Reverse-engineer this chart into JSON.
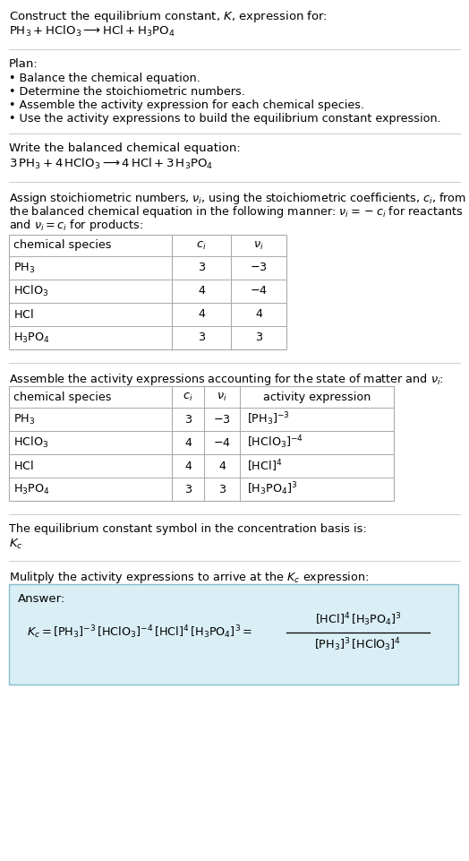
{
  "title_line1": "Construct the equilibrium constant, $K$, expression for:",
  "title_line2": "$\\mathrm{PH_3 + HClO_3 \\longrightarrow HCl + H_3PO_4}$",
  "plan_header": "Plan:",
  "plan_items": [
    "• Balance the chemical equation.",
    "• Determine the stoichiometric numbers.",
    "• Assemble the activity expression for each chemical species.",
    "• Use the activity expressions to build the equilibrium constant expression."
  ],
  "balanced_header": "Write the balanced chemical equation:",
  "balanced_eq": "$\\mathrm{3\\,PH_3 + 4\\,HClO_3 \\longrightarrow 4\\,HCl + 3\\,H_3PO_4}$",
  "stoich_intro_lines": [
    "Assign stoichiometric numbers, $\\nu_i$, using the stoichiometric coefficients, $c_i$, from",
    "the balanced chemical equation in the following manner: $\\nu_i = -c_i$ for reactants",
    "and $\\nu_i = c_i$ for products:"
  ],
  "table1_headers": [
    "chemical species",
    "$c_i$",
    "$\\nu_i$"
  ],
  "table1_rows": [
    [
      "$\\mathrm{PH_3}$",
      "3",
      "$-3$"
    ],
    [
      "$\\mathrm{HClO_3}$",
      "4",
      "$-4$"
    ],
    [
      "$\\mathrm{HCl}$",
      "4",
      "4"
    ],
    [
      "$\\mathrm{H_3PO_4}$",
      "3",
      "3"
    ]
  ],
  "assemble_intro": "Assemble the activity expressions accounting for the state of matter and $\\nu_i$:",
  "table2_headers": [
    "chemical species",
    "$c_i$",
    "$\\nu_i$",
    "activity expression"
  ],
  "table2_rows": [
    [
      "$\\mathrm{PH_3}$",
      "3",
      "$-3$",
      "$[\\mathrm{PH_3}]^{-3}$"
    ],
    [
      "$\\mathrm{HClO_3}$",
      "4",
      "$-4$",
      "$[\\mathrm{HClO_3}]^{-4}$"
    ],
    [
      "$\\mathrm{HCl}$",
      "4",
      "4",
      "$[\\mathrm{HCl}]^{4}$"
    ],
    [
      "$\\mathrm{H_3PO_4}$",
      "3",
      "3",
      "$[\\mathrm{H_3PO_4}]^{3}$"
    ]
  ],
  "kc_intro": "The equilibrium constant symbol in the concentration basis is:",
  "kc_symbol": "$K_c$",
  "multiply_intro": "Mulitply the activity expressions to arrive at the $K_c$ expression:",
  "answer_label": "Answer:",
  "bg_color": "#ffffff",
  "text_color": "#000000",
  "table_border_color": "#aaaaaa",
  "answer_box_fill": "#d9eef5",
  "answer_box_border": "#89bece",
  "separator_color": "#cccccc",
  "font_size": 9.5,
  "font_size_small": 9.2
}
